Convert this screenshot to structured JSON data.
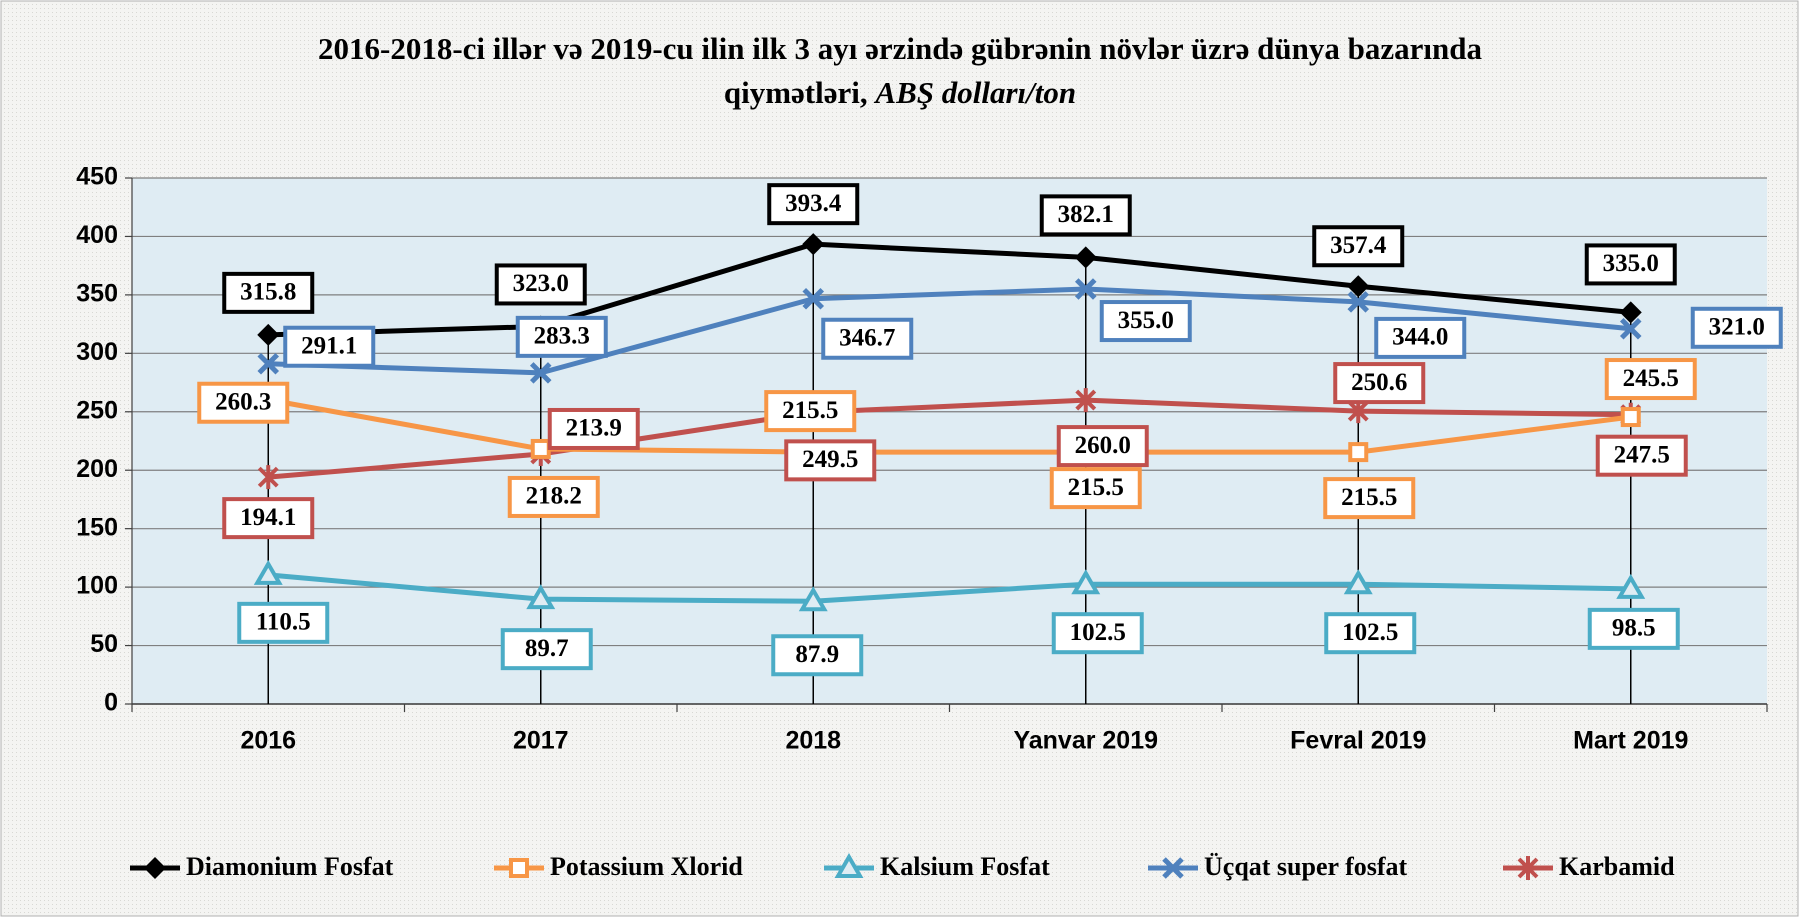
{
  "chart_data": {
    "type": "line",
    "title": "2016-2018-ci illər və 2019-cu ilin ilk 3 ayı ərzində gübrənin növlər üzrə  dünya bazarında",
    "title_line2": "qiymətləri,",
    "title_unit": "ABŞ dolları/ton",
    "categories": [
      "2016",
      "2017",
      "2018",
      "Yanvar 2019",
      "Fevral 2019",
      "Mart 2019"
    ],
    "ylim": [
      0,
      450
    ],
    "yticks": [
      0,
      50,
      100,
      150,
      200,
      250,
      300,
      350,
      400,
      450
    ],
    "grid": true,
    "legend": "bottom",
    "series": [
      {
        "name": "Diamonium Fosfat",
        "color": "#000000",
        "marker": "diamond",
        "values": [
          315.8,
          323.0,
          393.4,
          382.1,
          357.4,
          335.0
        ],
        "value_labels": [
          "315.8",
          "323.0",
          "393.4",
          "382.1",
          "357.4",
          "335.0"
        ]
      },
      {
        "name": "Potassium Xlorid",
        "color": "#f79646",
        "marker": "square",
        "values": [
          260.3,
          218.2,
          215.5,
          215.5,
          215.5,
          245.5
        ],
        "value_labels": [
          "260.3",
          "218.2",
          "215.5",
          "215.5",
          "215.5",
          "245.5"
        ]
      },
      {
        "name": "Kalsium Fosfat",
        "color": "#4bacc6",
        "marker": "triangle",
        "values": [
          110.5,
          89.7,
          87.9,
          102.5,
          102.5,
          98.5
        ],
        "value_labels": [
          "110.5",
          "89.7",
          "87.9",
          "102.5",
          "102.5",
          "98.5"
        ]
      },
      {
        "name": "Üçqat super fosfat",
        "color": "#4f81bd",
        "marker": "x",
        "values": [
          291.1,
          283.3,
          346.7,
          355.0,
          344.0,
          321.0
        ],
        "value_labels": [
          "291.1",
          "283.3",
          "346.7",
          "355.0",
          "344.0",
          "321.0"
        ]
      },
      {
        "name": "Karbamid",
        "color": "#c0504d",
        "marker": "star",
        "values": [
          194.1,
          213.9,
          249.5,
          260.0,
          250.6,
          247.5
        ],
        "value_labels": [
          "194.1",
          "213.9",
          "249.5",
          "260.0",
          "250.6",
          "247.5"
        ]
      }
    ]
  }
}
